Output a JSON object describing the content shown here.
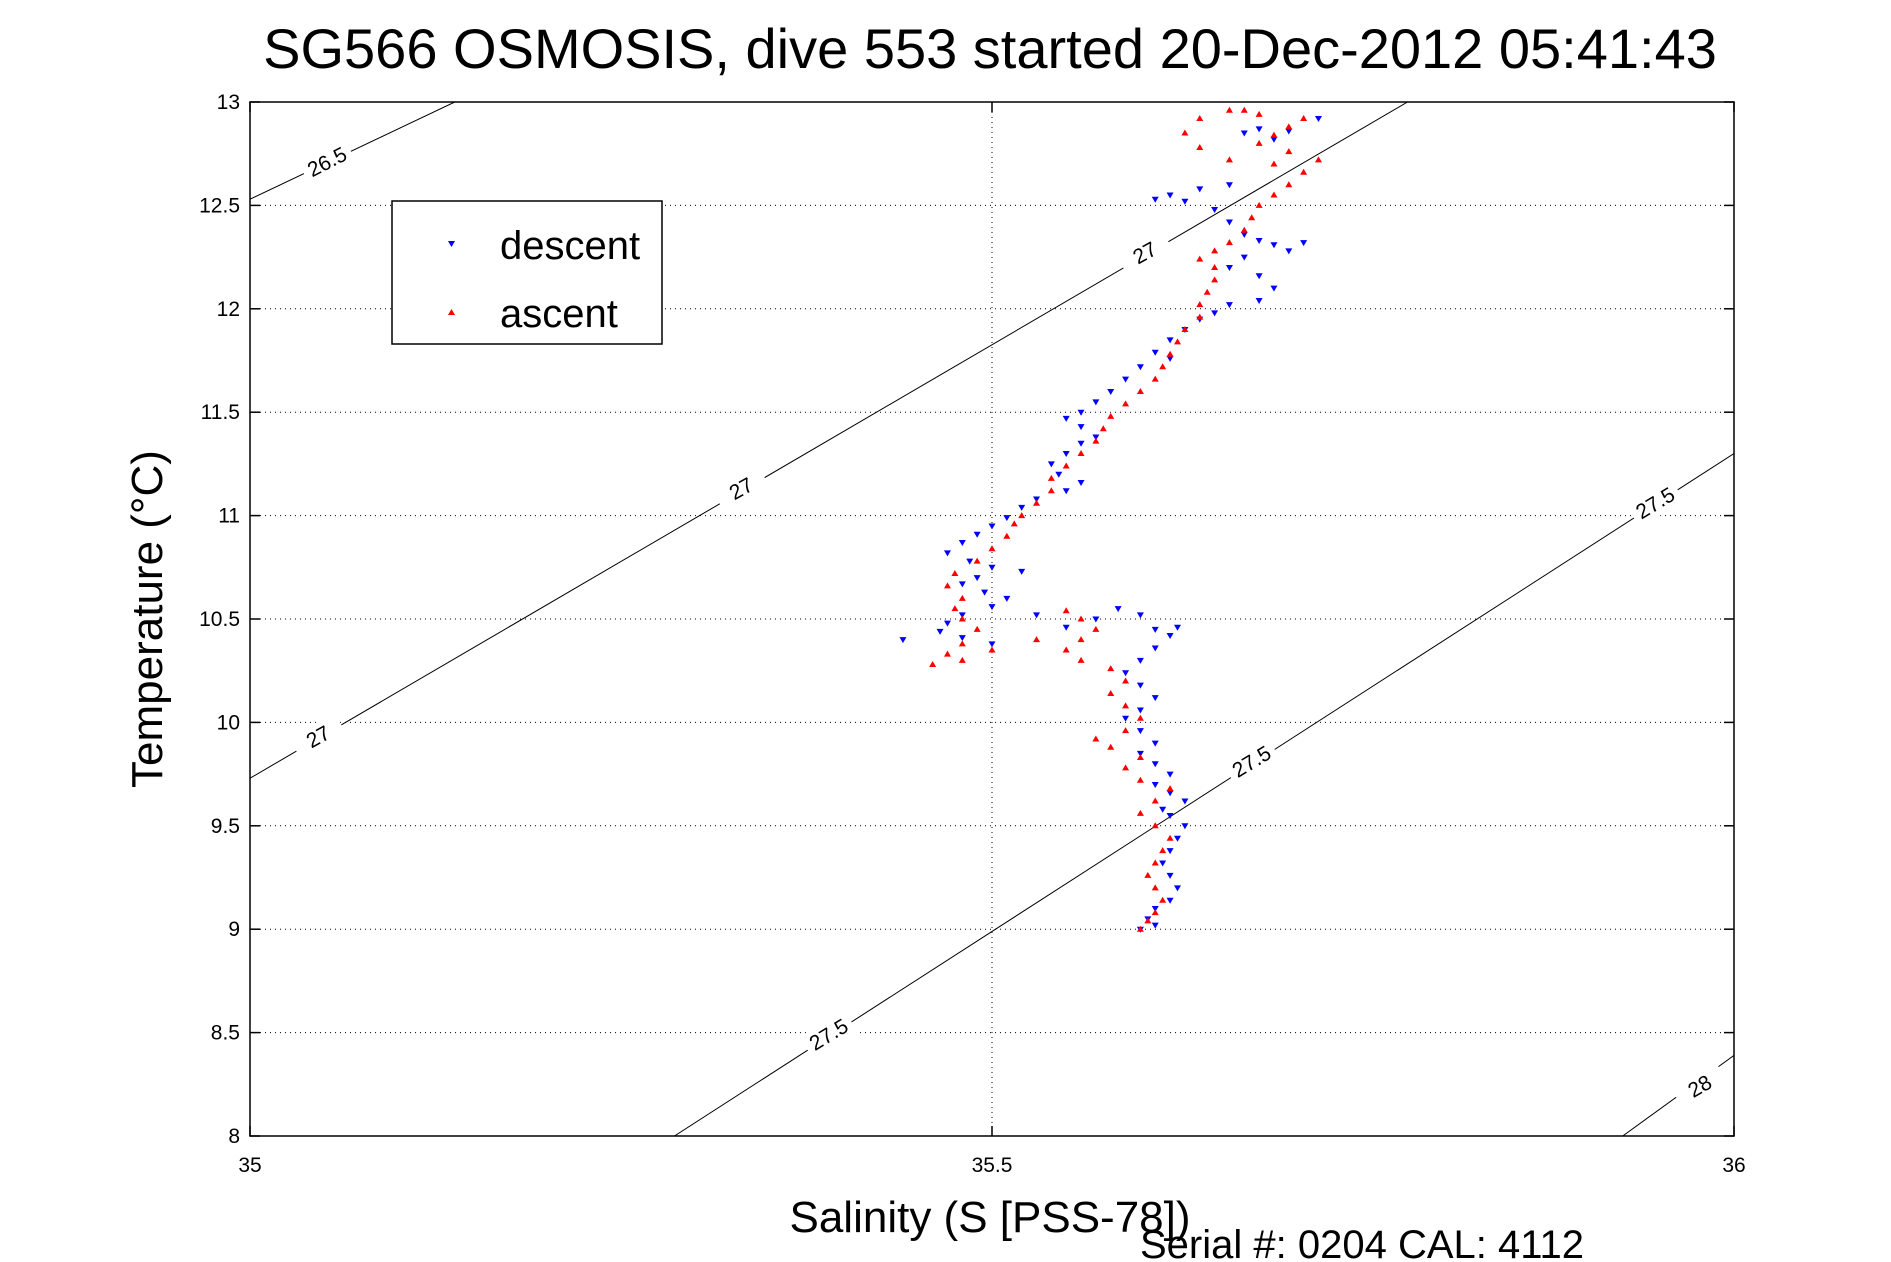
{
  "chart_data": {
    "type": "scatter",
    "title": "SG566 OSMOSIS, dive 553 started 20-Dec-2012 05:41:43",
    "xlabel": "Salinity (S [PSS-78])",
    "ylabel": "Temperature (°C)",
    "footer": "Serial #: 0204  CAL: 4112",
    "xlim": [
      35,
      36
    ],
    "ylim": [
      8,
      13
    ],
    "xticks": [
      35,
      35.5,
      36
    ],
    "yticks": [
      8,
      8.5,
      9,
      9.5,
      10,
      10.5,
      11,
      11.5,
      12,
      12.5,
      13
    ],
    "xtick_labels": [
      "35",
      "35.5",
      "36"
    ],
    "ytick_labels": [
      "8",
      "8.5",
      "9",
      "9.5",
      "10",
      "10.5",
      "11",
      "11.5",
      "12",
      "12.5",
      "13"
    ],
    "grid": true,
    "legend": {
      "placement": "upper-left",
      "entries": [
        {
          "label": "descent",
          "color": "#0000ff",
          "marker": "triangle-down"
        },
        {
          "label": "ascent",
          "color": "#ff0000",
          "marker": "triangle-up"
        }
      ]
    },
    "density_contours": [
      {
        "level": "26.5",
        "points": [
          [
            35.0,
            12.53
          ],
          [
            35.138,
            13.0
          ]
        ],
        "labels": [
          {
            "x": 35.052,
            "y": 12.71,
            "angle": -27
          }
        ]
      },
      {
        "level": "27",
        "points": [
          [
            35.0,
            9.73
          ],
          [
            35.78,
            13.0
          ]
        ],
        "labels": [
          {
            "x": 35.331,
            "y": 11.13,
            "angle": -29
          },
          {
            "x": 35.046,
            "y": 9.93,
            "angle": -29
          },
          {
            "x": 35.603,
            "y": 12.27,
            "angle": -29
          }
        ]
      },
      {
        "level": "27.5",
        "points": [
          [
            35.286,
            8.0
          ],
          [
            36.0,
            11.3
          ]
        ],
        "labels": [
          {
            "x": 35.39,
            "y": 8.49,
            "angle": -31
          },
          {
            "x": 35.675,
            "y": 9.81,
            "angle": -31
          },
          {
            "x": 35.947,
            "y": 11.06,
            "angle": -31
          }
        ]
      },
      {
        "level": "28",
        "points": [
          [
            35.925,
            8.0
          ],
          [
            36.0,
            8.39
          ]
        ],
        "labels": [
          {
            "x": 35.977,
            "y": 8.24,
            "angle": -30
          }
        ]
      }
    ],
    "series": [
      {
        "name": "descent",
        "color": "#0000ff",
        "marker": "triangle-down",
        "points": [
          [
            35.68,
            12.87
          ],
          [
            35.67,
            12.85
          ],
          [
            35.69,
            12.82
          ],
          [
            35.7,
            12.86
          ],
          [
            35.72,
            12.92
          ],
          [
            35.66,
            12.6
          ],
          [
            35.64,
            12.58
          ],
          [
            35.62,
            12.55
          ],
          [
            35.61,
            12.53
          ],
          [
            35.63,
            12.52
          ],
          [
            35.65,
            12.48
          ],
          [
            35.66,
            12.42
          ],
          [
            35.67,
            12.36
          ],
          [
            35.68,
            12.33
          ],
          [
            35.69,
            12.31
          ],
          [
            35.71,
            12.32
          ],
          [
            35.7,
            12.28
          ],
          [
            35.67,
            12.25
          ],
          [
            35.66,
            12.2
          ],
          [
            35.68,
            12.16
          ],
          [
            35.69,
            12.1
          ],
          [
            35.68,
            12.04
          ],
          [
            35.66,
            12.02
          ],
          [
            35.65,
            11.98
          ],
          [
            35.64,
            11.95
          ],
          [
            35.63,
            11.9
          ],
          [
            35.62,
            11.85
          ],
          [
            35.61,
            11.79
          ],
          [
            35.62,
            11.76
          ],
          [
            35.6,
            11.72
          ],
          [
            35.59,
            11.66
          ],
          [
            35.58,
            11.6
          ],
          [
            35.57,
            11.55
          ],
          [
            35.56,
            11.5
          ],
          [
            35.55,
            11.47
          ],
          [
            35.56,
            11.43
          ],
          [
            35.57,
            11.38
          ],
          [
            35.56,
            11.35
          ],
          [
            35.55,
            11.3
          ],
          [
            35.54,
            11.25
          ],
          [
            35.545,
            11.2
          ],
          [
            35.56,
            11.16
          ],
          [
            35.55,
            11.12
          ],
          [
            35.53,
            11.08
          ],
          [
            35.52,
            11.04
          ],
          [
            35.51,
            10.99
          ],
          [
            35.5,
            10.95
          ],
          [
            35.49,
            10.91
          ],
          [
            35.48,
            10.87
          ],
          [
            35.47,
            10.82
          ],
          [
            35.485,
            10.78
          ],
          [
            35.5,
            10.75
          ],
          [
            35.52,
            10.73
          ],
          [
            35.49,
            10.7
          ],
          [
            35.48,
            10.67
          ],
          [
            35.495,
            10.63
          ],
          [
            35.51,
            10.6
          ],
          [
            35.5,
            10.56
          ],
          [
            35.48,
            10.52
          ],
          [
            35.47,
            10.48
          ],
          [
            35.465,
            10.44
          ],
          [
            35.48,
            10.41
          ],
          [
            35.5,
            10.38
          ],
          [
            35.44,
            10.4
          ],
          [
            35.53,
            10.52
          ],
          [
            35.55,
            10.46
          ],
          [
            35.57,
            10.5
          ],
          [
            35.585,
            10.55
          ],
          [
            35.6,
            10.52
          ],
          [
            35.61,
            10.45
          ],
          [
            35.62,
            10.42
          ],
          [
            35.61,
            10.36
          ],
          [
            35.6,
            10.3
          ],
          [
            35.59,
            10.24
          ],
          [
            35.6,
            10.18
          ],
          [
            35.61,
            10.12
          ],
          [
            35.6,
            10.06
          ],
          [
            35.59,
            10.02
          ],
          [
            35.6,
            9.96
          ],
          [
            35.61,
            9.9
          ],
          [
            35.6,
            9.85
          ],
          [
            35.61,
            9.8
          ],
          [
            35.62,
            9.75
          ],
          [
            35.61,
            9.7
          ],
          [
            35.62,
            9.66
          ],
          [
            35.63,
            9.62
          ],
          [
            35.615,
            9.58
          ],
          [
            35.62,
            9.55
          ],
          [
            35.63,
            9.5
          ],
          [
            35.625,
            9.44
          ],
          [
            35.62,
            9.38
          ],
          [
            35.615,
            9.32
          ],
          [
            35.62,
            9.26
          ],
          [
            35.625,
            9.2
          ],
          [
            35.62,
            9.14
          ],
          [
            35.61,
            9.1
          ],
          [
            35.605,
            9.05
          ],
          [
            35.6,
            9.0
          ],
          [
            35.61,
            9.02
          ],
          [
            35.625,
            10.46
          ]
        ]
      },
      {
        "name": "ascent",
        "color": "#ff0000",
        "marker": "triangle-up",
        "points": [
          [
            35.6,
            9.0
          ],
          [
            35.605,
            9.04
          ],
          [
            35.61,
            9.08
          ],
          [
            35.615,
            9.14
          ],
          [
            35.61,
            9.2
          ],
          [
            35.605,
            9.26
          ],
          [
            35.61,
            9.32
          ],
          [
            35.615,
            9.38
          ],
          [
            35.62,
            9.44
          ],
          [
            35.61,
            9.5
          ],
          [
            35.6,
            9.56
          ],
          [
            35.61,
            9.62
          ],
          [
            35.62,
            9.68
          ],
          [
            35.6,
            9.72
          ],
          [
            35.59,
            9.78
          ],
          [
            35.6,
            9.83
          ],
          [
            35.58,
            9.88
          ],
          [
            35.57,
            9.92
          ],
          [
            35.59,
            9.96
          ],
          [
            35.6,
            10.02
          ],
          [
            35.59,
            10.08
          ],
          [
            35.58,
            10.14
          ],
          [
            35.59,
            10.2
          ],
          [
            35.58,
            10.26
          ],
          [
            35.56,
            10.3
          ],
          [
            35.55,
            10.35
          ],
          [
            35.56,
            10.4
          ],
          [
            35.57,
            10.45
          ],
          [
            35.56,
            10.5
          ],
          [
            35.55,
            10.54
          ],
          [
            35.53,
            10.4
          ],
          [
            35.5,
            10.35
          ],
          [
            35.48,
            10.3
          ],
          [
            35.46,
            10.28
          ],
          [
            35.47,
            10.33
          ],
          [
            35.48,
            10.38
          ],
          [
            35.49,
            10.45
          ],
          [
            35.48,
            10.5
          ],
          [
            35.475,
            10.55
          ],
          [
            35.48,
            10.6
          ],
          [
            35.47,
            10.66
          ],
          [
            35.475,
            10.72
          ],
          [
            35.49,
            10.78
          ],
          [
            35.5,
            10.84
          ],
          [
            35.51,
            10.9
          ],
          [
            35.515,
            10.96
          ],
          [
            35.52,
            11.0
          ],
          [
            35.53,
            11.06
          ],
          [
            35.54,
            11.12
          ],
          [
            35.54,
            11.18
          ],
          [
            35.55,
            11.24
          ],
          [
            35.56,
            11.3
          ],
          [
            35.57,
            11.36
          ],
          [
            35.575,
            11.42
          ],
          [
            35.58,
            11.48
          ],
          [
            35.59,
            11.54
          ],
          [
            35.6,
            11.6
          ],
          [
            35.61,
            11.66
          ],
          [
            35.615,
            11.72
          ],
          [
            35.62,
            11.78
          ],
          [
            35.625,
            11.84
          ],
          [
            35.63,
            11.9
          ],
          [
            35.64,
            11.96
          ],
          [
            35.64,
            12.02
          ],
          [
            35.645,
            12.08
          ],
          [
            35.65,
            12.14
          ],
          [
            35.65,
            12.2
          ],
          [
            35.64,
            12.24
          ],
          [
            35.65,
            12.28
          ],
          [
            35.66,
            12.32
          ],
          [
            35.67,
            12.38
          ],
          [
            35.675,
            12.44
          ],
          [
            35.68,
            12.5
          ],
          [
            35.69,
            12.55
          ],
          [
            35.7,
            12.6
          ],
          [
            35.71,
            12.66
          ],
          [
            35.72,
            12.72
          ],
          [
            35.7,
            12.76
          ],
          [
            35.68,
            12.8
          ],
          [
            35.69,
            12.84
          ],
          [
            35.7,
            12.88
          ],
          [
            35.71,
            12.92
          ],
          [
            35.68,
            12.94
          ],
          [
            35.67,
            12.96
          ],
          [
            35.66,
            12.96
          ],
          [
            35.64,
            12.92
          ],
          [
            35.63,
            12.85
          ],
          [
            35.64,
            12.78
          ],
          [
            35.66,
            12.72
          ],
          [
            35.69,
            12.7
          ]
        ]
      }
    ]
  }
}
